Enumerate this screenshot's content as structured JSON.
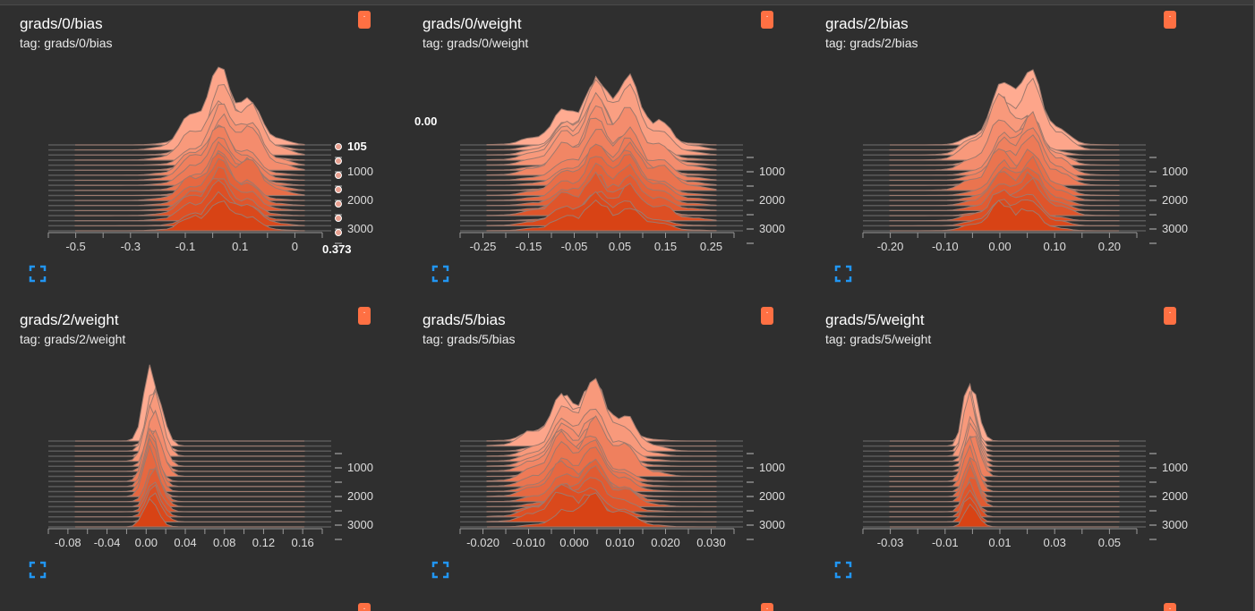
{
  "colors": {
    "background": "#2f2f2f",
    "accent": "#ff7043",
    "expand_icon": "#2196f3",
    "ridge_front": "#d84315",
    "ridge_back": "#ffab91"
  },
  "icons": {
    "menu": "dot-menu-icon",
    "expand": "fullscreen-expand-icon"
  },
  "cards": [
    {
      "title": "grads/0/bias",
      "tag": "tag: grads/0/bias",
      "x_ticks": [
        "-0.5",
        "-0.3",
        "-0.1",
        "0.1",
        "0"
      ],
      "step_ticks": [
        "1000",
        "2000",
        "3000"
      ],
      "hover": {
        "step": "105",
        "value": "0.373"
      },
      "peak_value": 0.0,
      "spread": 0.08
    },
    {
      "title": "grads/0/weight",
      "tag": "tag: grads/0/weight",
      "x_ticks": [
        "-0.25",
        "-0.15",
        "-0.05",
        "0.05",
        "0.15",
        "0.25"
      ],
      "step_ticks": [
        "1000",
        "2000",
        "3000"
      ],
      "hover": {
        "value": "0.00"
      },
      "peak_value": 0.0,
      "spread": 0.05
    },
    {
      "title": "grads/2/bias",
      "tag": "tag: grads/2/bias",
      "x_ticks": [
        "-0.20",
        "-0.10",
        "0.00",
        "0.10",
        "0.20"
      ],
      "step_ticks": [
        "1000",
        "2000",
        "3000"
      ],
      "peak_value": 0.0,
      "spread": 0.04
    },
    {
      "title": "grads/2/weight",
      "tag": "tag: grads/2/weight",
      "x_ticks": [
        "-0.08",
        "-0.04",
        "0.00",
        "0.04",
        "0.08",
        "0.12",
        "0.16"
      ],
      "step_ticks": [
        "1000",
        "2000",
        "3000"
      ],
      "peak_value": 0.0,
      "spread": 0.01
    },
    {
      "title": "grads/5/bias",
      "tag": "tag: grads/5/bias",
      "x_ticks": [
        "-0.020",
        "-0.010",
        "0.000",
        "0.010",
        "0.020",
        "0.030"
      ],
      "step_ticks": [
        "1000",
        "2000",
        "3000"
      ],
      "peak_value": 0.0,
      "spread": 0.006
    },
    {
      "title": "grads/5/weight",
      "tag": "tag: grads/5/weight",
      "x_ticks": [
        "-0.03",
        "-0.01",
        "0.01",
        "0.03",
        "0.05"
      ],
      "step_ticks": [
        "1000",
        "2000",
        "3000"
      ],
      "peak_value": 0.0,
      "spread": 0.004
    },
    {
      "title": "",
      "tag": ""
    },
    {
      "title": "",
      "tag": ""
    }
  ]
}
